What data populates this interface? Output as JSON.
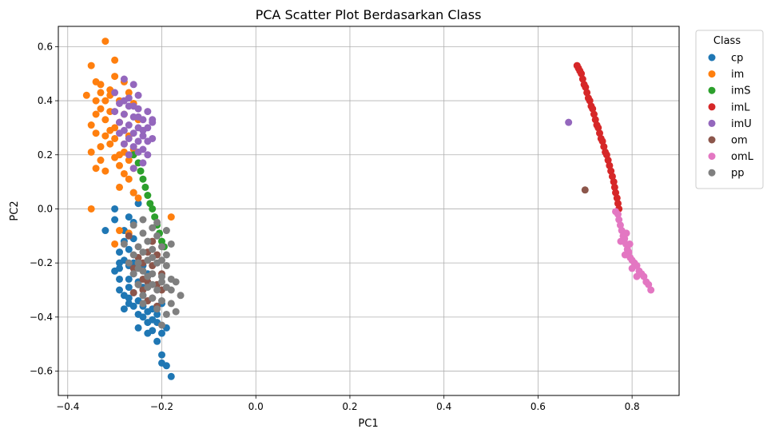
{
  "chart_data": {
    "type": "scatter",
    "title": "PCA Scatter Plot Berdasarkan Class",
    "xlabel": "PC1",
    "ylabel": "PC2",
    "xlim": [
      -0.42,
      0.9
    ],
    "ylim": [
      -0.69,
      0.675
    ],
    "xticks": [
      -0.4,
      -0.2,
      0.0,
      0.2,
      0.4,
      0.6,
      0.8
    ],
    "xtick_labels": [
      "−0.4",
      "−0.2",
      "0.0",
      "0.2",
      "0.4",
      "0.6",
      "0.8"
    ],
    "yticks": [
      -0.6,
      -0.4,
      -0.2,
      0.0,
      0.2,
      0.4,
      0.6
    ],
    "ytick_labels": [
      "−0.6",
      "−0.4",
      "−0.2",
      "0.0",
      "0.2",
      "0.4",
      "0.6"
    ],
    "grid": true,
    "legend": {
      "title": "Class",
      "placement": "outside-right"
    },
    "series": [
      {
        "name": "cp",
        "color": "#1f77b4",
        "points": [
          [
            -0.18,
            -0.62
          ],
          [
            -0.19,
            -0.58
          ],
          [
            -0.2,
            -0.57
          ],
          [
            -0.2,
            -0.54
          ],
          [
            -0.23,
            -0.46
          ],
          [
            -0.22,
            -0.45
          ],
          [
            -0.2,
            -0.46
          ],
          [
            -0.19,
            -0.44
          ],
          [
            -0.21,
            -0.42
          ],
          [
            -0.23,
            -0.42
          ],
          [
            -0.24,
            -0.4
          ],
          [
            -0.21,
            -0.39
          ],
          [
            -0.22,
            -0.37
          ],
          [
            -0.26,
            -0.36
          ],
          [
            -0.24,
            -0.36
          ],
          [
            -0.27,
            -0.35
          ],
          [
            -0.25,
            -0.34
          ],
          [
            -0.22,
            -0.33
          ],
          [
            -0.28,
            -0.32
          ],
          [
            -0.26,
            -0.31
          ],
          [
            -0.27,
            -0.29
          ],
          [
            -0.29,
            -0.3
          ],
          [
            -0.29,
            -0.26
          ],
          [
            -0.27,
            -0.26
          ],
          [
            -0.25,
            -0.27
          ],
          [
            -0.3,
            -0.23
          ],
          [
            -0.29,
            -0.22
          ],
          [
            -0.27,
            -0.21
          ],
          [
            -0.28,
            -0.19
          ],
          [
            -0.26,
            -0.2
          ],
          [
            -0.29,
            -0.16
          ],
          [
            -0.27,
            -0.15
          ],
          [
            -0.28,
            -0.12
          ],
          [
            -0.26,
            -0.11
          ],
          [
            -0.28,
            -0.08
          ],
          [
            -0.26,
            -0.05
          ],
          [
            -0.27,
            -0.03
          ],
          [
            -0.3,
            0.0
          ],
          [
            -0.32,
            -0.08
          ],
          [
            -0.3,
            -0.04
          ],
          [
            -0.25,
            0.02
          ],
          [
            -0.26,
            0.06
          ],
          [
            -0.23,
            -0.24
          ],
          [
            -0.24,
            -0.29
          ],
          [
            -0.2,
            -0.35
          ],
          [
            -0.22,
            -0.41
          ],
          [
            -0.25,
            -0.44
          ],
          [
            -0.21,
            -0.49
          ],
          [
            -0.23,
            -0.38
          ],
          [
            -0.26,
            -0.24
          ],
          [
            -0.24,
            -0.21
          ],
          [
            -0.28,
            -0.37
          ],
          [
            -0.25,
            -0.39
          ],
          [
            -0.27,
            -0.33
          ],
          [
            -0.29,
            -0.2
          ],
          [
            -0.24,
            -0.32
          ]
        ]
      },
      {
        "name": "im",
        "color": "#ff7f0e",
        "points": [
          [
            -0.32,
            0.62
          ],
          [
            -0.35,
            0.53
          ],
          [
            -0.3,
            0.55
          ],
          [
            -0.34,
            0.47
          ],
          [
            -0.33,
            0.46
          ],
          [
            -0.31,
            0.44
          ],
          [
            -0.36,
            0.42
          ],
          [
            -0.34,
            0.4
          ],
          [
            -0.3,
            0.49
          ],
          [
            -0.28,
            0.47
          ],
          [
            -0.33,
            0.37
          ],
          [
            -0.34,
            0.35
          ],
          [
            -0.31,
            0.36
          ],
          [
            -0.32,
            0.33
          ],
          [
            -0.35,
            0.31
          ],
          [
            -0.34,
            0.28
          ],
          [
            -0.3,
            0.3
          ],
          [
            -0.32,
            0.27
          ],
          [
            -0.31,
            0.24
          ],
          [
            -0.33,
            0.23
          ],
          [
            -0.35,
            0.21
          ],
          [
            -0.33,
            0.18
          ],
          [
            -0.3,
            0.19
          ],
          [
            -0.28,
            0.21
          ],
          [
            -0.27,
            0.18
          ],
          [
            -0.29,
            0.16
          ],
          [
            -0.26,
            0.15
          ],
          [
            -0.34,
            0.15
          ],
          [
            -0.32,
            0.14
          ],
          [
            -0.28,
            0.13
          ],
          [
            -0.27,
            0.11
          ],
          [
            -0.29,
            0.08
          ],
          [
            -0.26,
            0.06
          ],
          [
            -0.35,
            0.0
          ],
          [
            -0.29,
            -0.08
          ],
          [
            -0.27,
            -0.09
          ],
          [
            -0.3,
            -0.13
          ],
          [
            -0.18,
            -0.03
          ],
          [
            -0.25,
            0.04
          ],
          [
            -0.31,
            0.42
          ],
          [
            -0.29,
            0.4
          ],
          [
            -0.27,
            0.43
          ],
          [
            -0.26,
            0.39
          ],
          [
            -0.28,
            0.35
          ],
          [
            -0.25,
            0.33
          ],
          [
            -0.29,
            0.32
          ],
          [
            -0.31,
            0.29
          ],
          [
            -0.27,
            0.27
          ],
          [
            -0.3,
            0.26
          ],
          [
            -0.28,
            0.24
          ],
          [
            -0.26,
            0.22
          ],
          [
            -0.29,
            0.2
          ],
          [
            -0.33,
            0.43
          ],
          [
            -0.32,
            0.4
          ]
        ]
      },
      {
        "name": "imS",
        "color": "#2ca02c",
        "points": [
          [
            -0.26,
            0.2
          ],
          [
            -0.25,
            0.17
          ],
          [
            -0.245,
            0.14
          ],
          [
            -0.24,
            0.11
          ],
          [
            -0.235,
            0.08
          ],
          [
            -0.23,
            0.05
          ],
          [
            -0.225,
            0.02
          ],
          [
            -0.22,
            0.0
          ],
          [
            -0.215,
            -0.03
          ],
          [
            -0.21,
            -0.06
          ],
          [
            -0.205,
            -0.09
          ],
          [
            -0.2,
            -0.12
          ],
          [
            -0.195,
            -0.14
          ]
        ]
      },
      {
        "name": "imL",
        "color": "#d62728",
        "points": [
          [
            0.683,
            0.53
          ],
          [
            0.686,
            0.52
          ],
          [
            0.689,
            0.51
          ],
          [
            0.692,
            0.5
          ],
          [
            0.695,
            0.48
          ],
          [
            0.698,
            0.46
          ],
          [
            0.701,
            0.45
          ],
          [
            0.704,
            0.43
          ],
          [
            0.707,
            0.41
          ],
          [
            0.71,
            0.4
          ],
          [
            0.713,
            0.38
          ],
          [
            0.716,
            0.37
          ],
          [
            0.719,
            0.35
          ],
          [
            0.722,
            0.33
          ],
          [
            0.725,
            0.31
          ],
          [
            0.728,
            0.3
          ],
          [
            0.731,
            0.28
          ],
          [
            0.734,
            0.26
          ],
          [
            0.737,
            0.25
          ],
          [
            0.74,
            0.23
          ],
          [
            0.743,
            0.21
          ],
          [
            0.746,
            0.2
          ],
          [
            0.749,
            0.18
          ],
          [
            0.752,
            0.16
          ],
          [
            0.755,
            0.14
          ],
          [
            0.758,
            0.12
          ],
          [
            0.761,
            0.1
          ],
          [
            0.763,
            0.08
          ],
          [
            0.765,
            0.06
          ],
          [
            0.768,
            0.04
          ],
          [
            0.77,
            0.02
          ],
          [
            0.772,
            0.0
          ]
        ]
      },
      {
        "name": "imU",
        "color": "#9467bd",
        "points": [
          [
            0.665,
            0.32
          ],
          [
            -0.28,
            0.48
          ],
          [
            -0.26,
            0.46
          ],
          [
            -0.3,
            0.43
          ],
          [
            -0.27,
            0.41
          ],
          [
            -0.25,
            0.42
          ],
          [
            -0.29,
            0.39
          ],
          [
            -0.27,
            0.38
          ],
          [
            -0.25,
            0.37
          ],
          [
            -0.23,
            0.36
          ],
          [
            -0.28,
            0.35
          ],
          [
            -0.26,
            0.34
          ],
          [
            -0.24,
            0.33
          ],
          [
            -0.22,
            0.33
          ],
          [
            -0.29,
            0.32
          ],
          [
            -0.27,
            0.31
          ],
          [
            -0.25,
            0.3
          ],
          [
            -0.23,
            0.3
          ],
          [
            -0.28,
            0.29
          ],
          [
            -0.26,
            0.28
          ],
          [
            -0.24,
            0.27
          ],
          [
            -0.27,
            0.26
          ],
          [
            -0.25,
            0.25
          ],
          [
            -0.23,
            0.25
          ],
          [
            -0.28,
            0.24
          ],
          [
            -0.26,
            0.23
          ],
          [
            -0.24,
            0.22
          ],
          [
            -0.25,
            0.21
          ],
          [
            -0.27,
            0.2
          ],
          [
            -0.23,
            0.2
          ],
          [
            -0.24,
            0.17
          ],
          [
            -0.26,
            0.15
          ],
          [
            -0.22,
            0.32
          ],
          [
            -0.22,
            0.26
          ],
          [
            -0.29,
            0.28
          ],
          [
            -0.3,
            0.36
          ],
          [
            -0.28,
            0.4
          ],
          [
            -0.26,
            0.38
          ],
          [
            -0.24,
            0.29
          ],
          [
            -0.25,
            0.34
          ]
        ]
      },
      {
        "name": "om",
        "color": "#8c564b",
        "points": [
          [
            0.7,
            0.07
          ],
          [
            -0.21,
            -0.36
          ],
          [
            -0.22,
            -0.33
          ],
          [
            -0.24,
            -0.3
          ],
          [
            -0.25,
            -0.28
          ],
          [
            -0.23,
            -0.27
          ],
          [
            -0.21,
            -0.28
          ],
          [
            -0.26,
            -0.22
          ],
          [
            -0.24,
            -0.2
          ],
          [
            -0.22,
            -0.21
          ],
          [
            -0.2,
            -0.24
          ],
          [
            -0.25,
            -0.18
          ],
          [
            -0.23,
            -0.16
          ],
          [
            -0.21,
            -0.17
          ],
          [
            -0.27,
            -0.1
          ],
          [
            -0.22,
            -0.12
          ],
          [
            -0.24,
            -0.26
          ],
          [
            -0.2,
            -0.3
          ],
          [
            -0.23,
            -0.34
          ],
          [
            -0.26,
            -0.31
          ]
        ]
      },
      {
        "name": "omL",
        "color": "#e377c2",
        "points": [
          [
            0.77,
            -0.02
          ],
          [
            0.772,
            -0.04
          ],
          [
            0.775,
            -0.06
          ],
          [
            0.778,
            -0.08
          ],
          [
            0.781,
            -0.1
          ],
          [
            0.784,
            -0.11
          ],
          [
            0.787,
            -0.13
          ],
          [
            0.79,
            -0.15
          ],
          [
            0.793,
            -0.16
          ],
          [
            0.796,
            -0.18
          ],
          [
            0.8,
            -0.19
          ],
          [
            0.805,
            -0.2
          ],
          [
            0.81,
            -0.21
          ],
          [
            0.815,
            -0.23
          ],
          [
            0.82,
            -0.24
          ],
          [
            0.825,
            -0.25
          ],
          [
            0.83,
            -0.27
          ],
          [
            0.835,
            -0.28
          ],
          [
            0.84,
            -0.3
          ],
          [
            0.785,
            -0.17
          ],
          [
            0.795,
            -0.13
          ],
          [
            0.8,
            -0.22
          ],
          [
            0.776,
            -0.12
          ],
          [
            0.788,
            -0.09
          ],
          [
            0.81,
            -0.25
          ],
          [
            0.765,
            -0.01
          ]
        ]
      },
      {
        "name": "pp",
        "color": "#7f7f7f",
        "points": [
          [
            -0.25,
            -0.14
          ],
          [
            -0.23,
            -0.12
          ],
          [
            -0.21,
            -0.1
          ],
          [
            -0.19,
            -0.08
          ],
          [
            -0.24,
            -0.09
          ],
          [
            -0.22,
            -0.07
          ],
          [
            -0.26,
            -0.17
          ],
          [
            -0.24,
            -0.16
          ],
          [
            -0.22,
            -0.15
          ],
          [
            -0.2,
            -0.14
          ],
          [
            -0.18,
            -0.13
          ],
          [
            -0.27,
            -0.2
          ],
          [
            -0.25,
            -0.2
          ],
          [
            -0.23,
            -0.19
          ],
          [
            -0.21,
            -0.2
          ],
          [
            -0.19,
            -0.21
          ],
          [
            -0.26,
            -0.24
          ],
          [
            -0.24,
            -0.23
          ],
          [
            -0.22,
            -0.24
          ],
          [
            -0.2,
            -0.25
          ],
          [
            -0.18,
            -0.26
          ],
          [
            -0.25,
            -0.28
          ],
          [
            -0.23,
            -0.29
          ],
          [
            -0.21,
            -0.3
          ],
          [
            -0.19,
            -0.29
          ],
          [
            -0.17,
            -0.27
          ],
          [
            -0.24,
            -0.32
          ],
          [
            -0.22,
            -0.33
          ],
          [
            -0.2,
            -0.34
          ],
          [
            -0.18,
            -0.35
          ],
          [
            -0.16,
            -0.32
          ],
          [
            -0.21,
            -0.37
          ],
          [
            -0.19,
            -0.39
          ],
          [
            -0.2,
            -0.43
          ],
          [
            -0.22,
            -0.28
          ],
          [
            -0.17,
            -0.38
          ],
          [
            -0.2,
            -0.27
          ],
          [
            -0.23,
            -0.25
          ],
          [
            -0.25,
            -0.22
          ],
          [
            -0.19,
            -0.17
          ],
          [
            -0.2,
            -0.19
          ],
          [
            -0.21,
            -0.05
          ],
          [
            -0.24,
            -0.04
          ],
          [
            -0.26,
            -0.06
          ],
          [
            -0.22,
            -0.18
          ],
          [
            -0.24,
            -0.35
          ],
          [
            -0.18,
            -0.3
          ],
          [
            -0.28,
            -0.13
          ]
        ]
      }
    ]
  }
}
